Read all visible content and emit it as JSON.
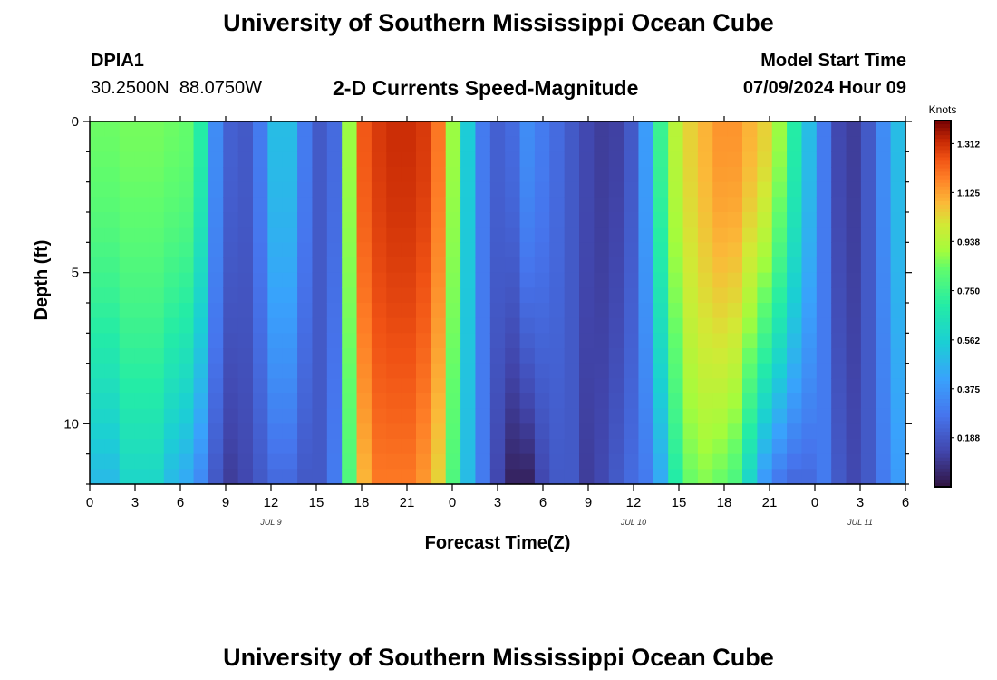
{
  "page": {
    "title": "University of Southern Mississippi Ocean Cube",
    "bottom_title": "University of Southern Mississippi Ocean Cube",
    "station_id": "DPIA1",
    "station_coords": "30.2500N  88.0750W",
    "subtitle": "2-D Currents Speed-Magnitude",
    "model_start_label": "Model Start Time",
    "model_start_value": "07/09/2024 Hour 09"
  },
  "chart_data": {
    "type": "heatmap",
    "title": "2-D Currents Speed-Magnitude",
    "xlabel": "Forecast Time(Z)",
    "ylabel": "Depth (ft)",
    "x_tick_labels": [
      "0",
      "3",
      "6",
      "9",
      "12",
      "15",
      "18",
      "21",
      "0",
      "3",
      "6",
      "9",
      "12",
      "15",
      "18",
      "21",
      "0",
      "3",
      "6"
    ],
    "x_range_hours": [
      0,
      54
    ],
    "date_labels": [
      {
        "label": "JUL 9",
        "hour": 12
      },
      {
        "label": "JUL 10",
        "hour": 36
      },
      {
        "label": "JUL 11",
        "hour": 51
      }
    ],
    "y_tick_labels": [
      "0",
      "5",
      "10"
    ],
    "ylim_ft": [
      0,
      12
    ],
    "colorbar": {
      "label": "Knots",
      "min": 0.0,
      "max": 1.4,
      "tick_values": [
        1.312,
        1.125,
        0.938,
        0.75,
        0.562,
        0.375,
        0.188
      ],
      "tick_labels": [
        "1.312",
        "1.125",
        "0.938",
        "0.750",
        "0.562",
        "0.375",
        "0.188"
      ]
    },
    "surface_speed_by_hour": [
      0.85,
      0.85,
      0.86,
      0.86,
      0.86,
      0.85,
      0.84,
      0.7,
      0.35,
      0.22,
      0.2,
      0.3,
      0.5,
      0.5,
      0.3,
      0.2,
      0.25,
      0.9,
      1.25,
      1.3,
      1.32,
      1.32,
      1.3,
      1.2,
      0.9,
      0.55,
      0.3,
      0.22,
      0.25,
      0.35,
      0.3,
      0.25,
      0.2,
      0.15,
      0.12,
      0.13,
      0.2,
      0.4,
      0.75,
      0.95,
      1.05,
      1.1,
      1.15,
      1.15,
      1.1,
      1.05,
      0.9,
      0.7,
      0.5,
      0.3,
      0.15,
      0.12,
      0.2,
      0.35,
      0.5
    ],
    "bottom_speed_by_hour": [
      0.5,
      0.5,
      0.6,
      0.6,
      0.6,
      0.5,
      0.45,
      0.35,
      0.2,
      0.12,
      0.15,
      0.2,
      0.25,
      0.25,
      0.2,
      0.2,
      0.3,
      0.8,
      1.1,
      1.2,
      1.2,
      1.2,
      1.15,
      1.05,
      0.8,
      0.5,
      0.3,
      0.15,
      0.05,
      0.05,
      0.15,
      0.2,
      0.2,
      0.12,
      0.15,
      0.2,
      0.25,
      0.3,
      0.45,
      0.7,
      0.85,
      0.88,
      0.85,
      0.8,
      0.6,
      0.4,
      0.3,
      0.25,
      0.25,
      0.3,
      0.2,
      0.15,
      0.2,
      0.3,
      0.4
    ]
  }
}
